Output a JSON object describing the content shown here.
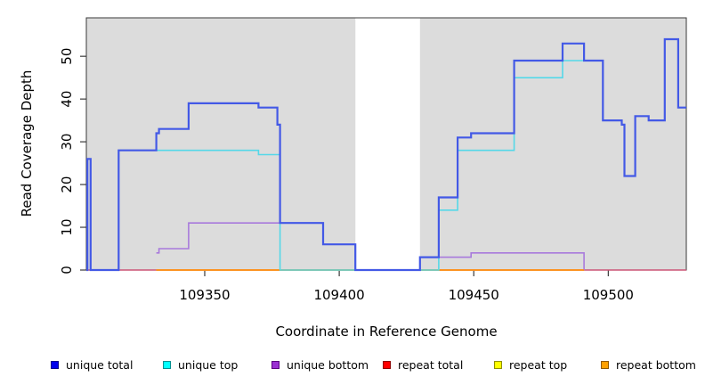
{
  "figure": {
    "xlabel": "Coordinate in Reference Genome",
    "ylabel": "Read Coverage Depth"
  },
  "chart_data": {
    "type": "line",
    "subtype": "step-after-coverage",
    "title": "",
    "xlabel": "Coordinate in Reference Genome",
    "ylabel": "Read Coverage Depth",
    "xlim": [
      109306,
      109529
    ],
    "ylim": [
      0,
      59
    ],
    "x_ticks": [
      109350,
      109400,
      109450,
      109500
    ],
    "y_ticks": [
      0,
      10,
      20,
      30,
      40,
      50
    ],
    "grid": false,
    "plot_bg": "#dcdcdc",
    "no_coverage_band": {
      "x0": 109406,
      "x1": 109430,
      "color": "#ffffff"
    },
    "series": [
      {
        "name": "repeat total",
        "color": "#cc5577",
        "width": 1.6,
        "points": [
          [
            109306,
            0
          ]
        ],
        "end": 109529
      },
      {
        "name": "repeat top",
        "color": "#e8e800",
        "width": 1.4,
        "points": [
          [
            109332,
            0
          ]
        ],
        "end": 109491
      },
      {
        "name": "unique bottom",
        "color": "#a87adc",
        "width": 1.6,
        "points": [
          [
            109332,
            4
          ],
          [
            109333,
            5
          ],
          [
            109344,
            11
          ],
          [
            109394,
            6
          ],
          [
            109406,
            0
          ],
          [
            109430,
            3
          ],
          [
            109449,
            4
          ],
          [
            109491,
            0
          ]
        ],
        "end": 109491
      },
      {
        "name": "repeat bottom",
        "color": "#ff8c1a",
        "width": 1.8,
        "points": [
          [
            109332,
            0
          ]
        ],
        "end": 109491
      },
      {
        "name": "unique top",
        "color": "#55d8e8",
        "width": 1.6,
        "points": [
          [
            109318,
            28
          ],
          [
            109370,
            27
          ],
          [
            109378,
            0
          ],
          [
            109437,
            14
          ],
          [
            109444,
            28
          ],
          [
            109465,
            45
          ],
          [
            109483,
            49
          ]
        ],
        "end": 109491
      },
      {
        "name": "unique total",
        "color": "#4359e6",
        "width": 2.2,
        "points": [
          [
            109306,
            0
          ],
          [
            109306.4,
            26
          ],
          [
            109307.6,
            0
          ],
          [
            109318,
            28
          ],
          [
            109332,
            32
          ],
          [
            109333,
            33
          ],
          [
            109344,
            39
          ],
          [
            109370,
            38
          ],
          [
            109377,
            34
          ],
          [
            109378,
            11
          ],
          [
            109394,
            6
          ],
          [
            109406,
            0
          ],
          [
            109430,
            3
          ],
          [
            109437,
            17
          ],
          [
            109444,
            31
          ],
          [
            109449,
            32
          ],
          [
            109465,
            49
          ],
          [
            109483,
            53
          ],
          [
            109491,
            49
          ],
          [
            109498,
            35
          ],
          [
            109505,
            34
          ],
          [
            109506,
            22
          ],
          [
            109510,
            36
          ],
          [
            109515,
            35
          ],
          [
            109521,
            54
          ],
          [
            109526,
            38
          ]
        ],
        "end": 109529
      }
    ],
    "legend": [
      {
        "label": "unique total",
        "fill": "#0000ee",
        "border": "#000090"
      },
      {
        "label": "unique top",
        "fill": "#00ffff",
        "border": "#009090"
      },
      {
        "label": "unique bottom",
        "fill": "#9a30d2",
        "border": "#5a0080"
      },
      {
        "label": "repeat total",
        "fill": "#ff0000",
        "border": "#900000"
      },
      {
        "label": "repeat top",
        "fill": "#ffff00",
        "border": "#909000"
      },
      {
        "label": "repeat bottom",
        "fill": "#ffa000",
        "border": "#905800"
      }
    ],
    "legend_position": "bottom"
  }
}
